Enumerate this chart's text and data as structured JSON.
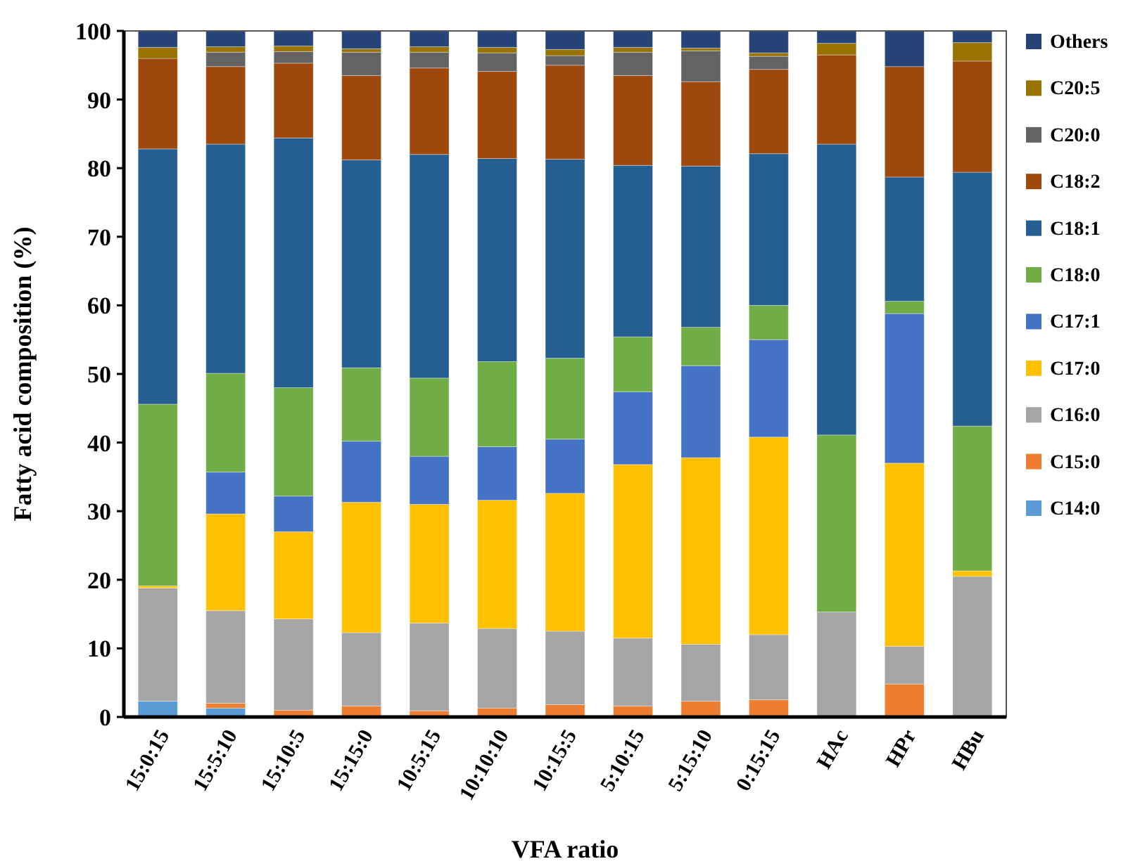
{
  "chart_data": {
    "type": "bar",
    "stacked": true,
    "xlabel": "VFA ratio",
    "ylabel": "Fatty acid composition (%)",
    "categories": [
      "15:0:15",
      "15:5:10",
      "15:10:5",
      "15:15:0",
      "10:5:15",
      "10:10:10",
      "10:15:5",
      "5:10:15",
      "5:15:10",
      "0:15:15",
      "HAc",
      "HPr",
      "HBu"
    ],
    "ylim": [
      0,
      100
    ],
    "yticks": [
      0,
      10,
      20,
      30,
      40,
      50,
      60,
      70,
      80,
      90,
      100
    ],
    "grid": false,
    "legend": "right",
    "series": [
      {
        "name": "C14:0",
        "color": "#5b9bd5",
        "values": [
          2.3,
          1.3,
          0,
          0,
          0,
          0,
          null,
          0,
          null,
          0,
          0,
          0,
          0
        ]
      },
      {
        "name": "C15:0",
        "color": "#ed7d31",
        "values": [
          0,
          0.7,
          1.0,
          1.6,
          0.9,
          1.3,
          1.8,
          1.6,
          2.3,
          2.5,
          0,
          4.8,
          0
        ]
      },
      {
        "name": "C16:0",
        "color": "#a5a5a5",
        "values": [
          16.5,
          13.5,
          13.3,
          10.7,
          12.8,
          11.6,
          10.7,
          9.9,
          8.3,
          9.5,
          15.3,
          5.5,
          20.5
        ]
      },
      {
        "name": "C17:0",
        "color": "#ffc000",
        "values": [
          0.3,
          14.1,
          12.7,
          19.0,
          17.3,
          18.7,
          20.1,
          25.3,
          27.2,
          28.8,
          0,
          26.7,
          0.8
        ]
      },
      {
        "name": "C17:1",
        "color": "#4472c4",
        "values": [
          0,
          6.1,
          5.2,
          8.9,
          7.0,
          7.8,
          7.9,
          10.6,
          13.4,
          14.2,
          0,
          21.8,
          0
        ]
      },
      {
        "name": "C18:0",
        "color": "#70ad47",
        "values": [
          26.5,
          14.4,
          15.8,
          10.7,
          11.4,
          12.4,
          11.8,
          8.0,
          5.6,
          5.0,
          25.8,
          1.8,
          21.1
        ]
      },
      {
        "name": "C18:1",
        "color": "#255e91",
        "values": [
          37.2,
          33.4,
          36.4,
          30.3,
          32.6,
          29.6,
          29.0,
          25.0,
          23.5,
          22.1,
          42.4,
          18.1,
          37.0
        ]
      },
      {
        "name": "C18:2",
        "color": "#9e480e",
        "values": [
          13.2,
          11.3,
          10.9,
          12.3,
          12.6,
          12.7,
          13.7,
          13.1,
          12.3,
          12.3,
          13.0,
          16.1,
          16.2
        ]
      },
      {
        "name": "C20:0",
        "color": "#636363",
        "values": [
          0,
          2.1,
          1.7,
          3.4,
          2.3,
          2.7,
          1.4,
          3.4,
          4.5,
          1.9,
          0,
          0,
          0
        ]
      },
      {
        "name": "C20:5",
        "color": "#997300",
        "values": [
          1.6,
          0.8,
          0.8,
          0.5,
          0.8,
          0.8,
          0.9,
          0.7,
          0.4,
          0.5,
          1.7,
          0,
          2.7
        ]
      },
      {
        "name": "Others",
        "color": "#264478",
        "values": [
          2.4,
          2.3,
          2.2,
          2.6,
          2.3,
          2.4,
          2.7,
          2.4,
          2.5,
          3.2,
          1.8,
          5.2,
          1.7
        ]
      }
    ]
  }
}
